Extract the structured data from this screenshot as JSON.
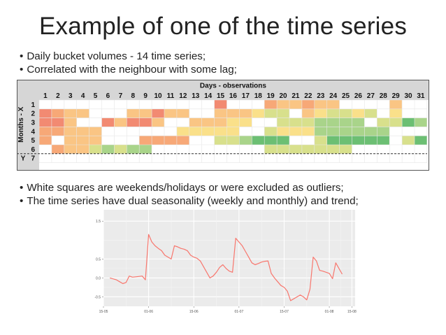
{
  "slide": {
    "title": "Example of one of the time series",
    "bullets_top": [
      "Daily bucket volumes - 14 time series;",
      "Correlated with the neighbour with some lag;"
    ],
    "bullets_bottom": [
      "White squares are weekends/holidays or were excluded as outliers;",
      "The time series have dual seasonality (weekly and monthly) and trend;"
    ]
  },
  "chart_data": [
    {
      "type": "heatmap",
      "title": "Days - observations",
      "xlabel": "",
      "ylabel": "Months - X",
      "target_label": "Y",
      "columns": [
        1,
        2,
        3,
        4,
        5,
        6,
        7,
        8,
        9,
        10,
        11,
        12,
        13,
        14,
        15,
        16,
        17,
        18,
        19,
        20,
        21,
        22,
        23,
        24,
        25,
        26,
        27,
        28,
        29,
        30,
        31
      ],
      "rows": [
        1,
        2,
        3,
        4,
        5,
        6,
        7
      ],
      "colors": {
        "R": "#f28a72",
        "O": "#f7a877",
        "P": "#fac584",
        "Y": "#fae08a",
        "L": "#d8e08c",
        "G": "#a9d48a",
        "D": "#6cbf73",
        "W": "#ffffff"
      },
      "grid": [
        "WWWWWWWWWWWWWWRWWWOPPOPPWWWWPWW",
        "ROPPWWWPPRPPWWPPPYLLWPYLLYLWYWW",
        "RRPWWRPRRPWWPPPYYWWLLLGGGGWLLDG",
        "OOPPPWWWWWWYYYYYWWLYYYGGGGGGWWW",
        "OWPPPWWWOOOOWWLLGDDDWWLDDDDDWLD",
        "WOPPLGLGGWWWWWWWWWLLLLLLLWWWWWW",
        "WWWWWWWWWWWWWWWWWWWWWWWWWWWWWWW"
      ]
    },
    {
      "type": "line",
      "title": "",
      "xlabel": "",
      "ylabel": "",
      "x_tick_labels": [
        "15-05",
        "01-06",
        "15-06",
        "01-07",
        "15-07",
        "01-08",
        "15-08"
      ],
      "y_tick_labels": [
        "1.5",
        "0.5",
        "0.0",
        "-0.5"
      ],
      "ylim": [
        -0.75,
        1.8
      ],
      "grid": true,
      "series": [
        {
          "color": "#f8766d",
          "points": [
            [
              2,
              0.0
            ],
            [
              4,
              -0.05
            ],
            [
              5,
              -0.1
            ],
            [
              6,
              -0.15
            ],
            [
              7,
              -0.12
            ],
            [
              8,
              0.05
            ],
            [
              9,
              0.02
            ],
            [
              10,
              0.03
            ],
            [
              12,
              0.05
            ],
            [
              13,
              -0.05
            ],
            [
              14,
              1.15
            ],
            [
              15,
              0.95
            ],
            [
              16,
              0.85
            ],
            [
              17,
              0.78
            ],
            [
              18,
              0.72
            ],
            [
              19,
              0.6
            ],
            [
              20,
              0.55
            ],
            [
              21,
              0.5
            ],
            [
              22,
              0.85
            ],
            [
              23,
              0.82
            ],
            [
              24,
              0.78
            ],
            [
              25,
              0.76
            ],
            [
              26,
              0.72
            ],
            [
              27,
              0.6
            ],
            [
              28,
              0.55
            ],
            [
              29,
              0.52
            ],
            [
              30,
              0.45
            ],
            [
              31,
              0.3
            ],
            [
              32,
              0.15
            ],
            [
              33,
              0.0
            ],
            [
              34,
              0.05
            ],
            [
              35,
              0.15
            ],
            [
              36,
              0.28
            ],
            [
              37,
              0.35
            ],
            [
              38,
              0.25
            ],
            [
              39,
              0.18
            ],
            [
              40,
              0.15
            ],
            [
              41,
              1.05
            ],
            [
              42,
              0.95
            ],
            [
              43,
              0.85
            ],
            [
              44,
              0.7
            ],
            [
              45,
              0.55
            ],
            [
              46,
              0.4
            ],
            [
              47,
              0.35
            ],
            [
              48,
              0.38
            ],
            [
              49,
              0.42
            ],
            [
              50,
              0.44
            ],
            [
              51,
              0.45
            ],
            [
              52,
              0.12
            ],
            [
              53,
              0.0
            ],
            [
              54,
              -0.1
            ],
            [
              55,
              -0.2
            ],
            [
              56,
              -0.25
            ],
            [
              57,
              -0.35
            ],
            [
              58,
              -0.6
            ],
            [
              59,
              -0.55
            ],
            [
              60,
              -0.5
            ],
            [
              61,
              -0.45
            ],
            [
              62,
              -0.5
            ],
            [
              63,
              -0.58
            ],
            [
              64,
              -0.3
            ],
            [
              65,
              0.55
            ],
            [
              66,
              0.45
            ],
            [
              67,
              0.2
            ],
            [
              68,
              0.18
            ],
            [
              69,
              0.15
            ],
            [
              70,
              0.12
            ],
            [
              71,
              -0.02
            ],
            [
              72,
              0.4
            ],
            [
              73,
              0.25
            ],
            [
              74,
              0.1
            ]
          ]
        }
      ]
    }
  ]
}
